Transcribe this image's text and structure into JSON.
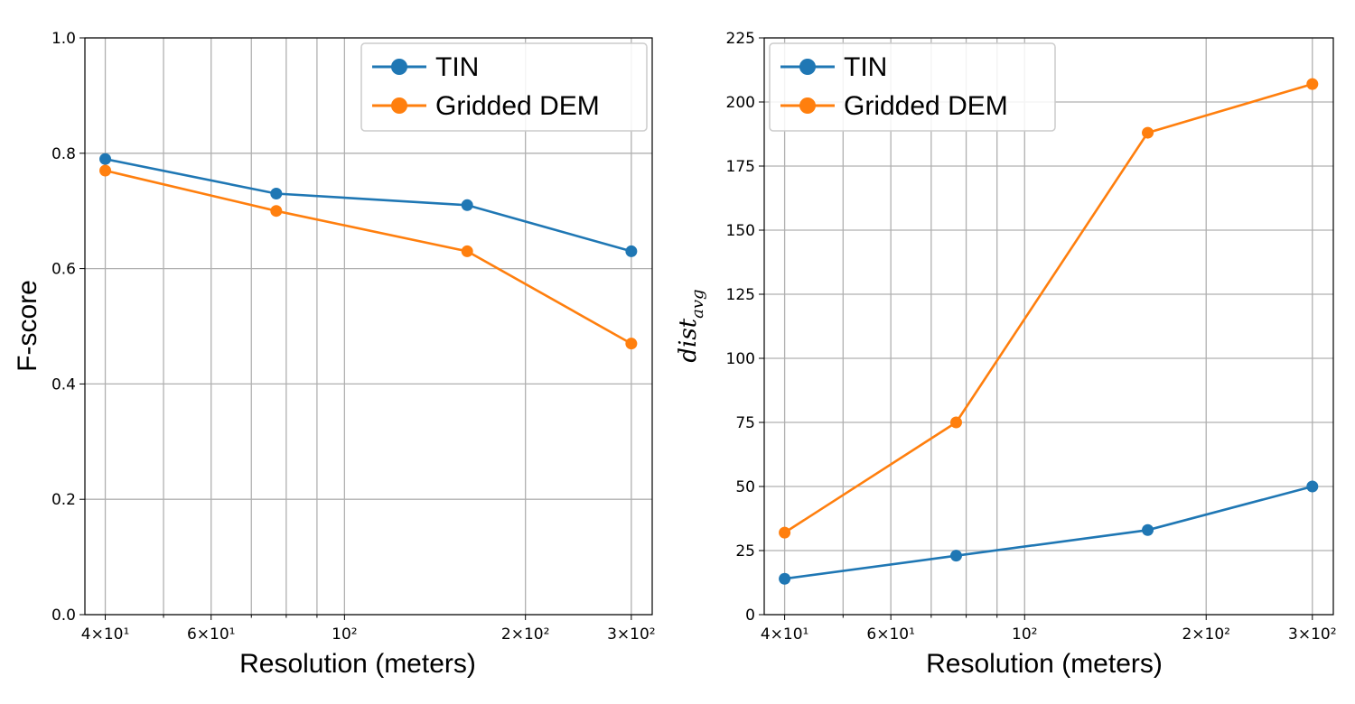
{
  "chart_data": [
    {
      "type": "line",
      "xscale": "log",
      "x": [
        40,
        77,
        160,
        300
      ],
      "xlim": [
        37,
        325
      ],
      "ylim": [
        0,
        1.0
      ],
      "xlabel": "Resolution (meters)",
      "ylabel": "F-score",
      "grid": true,
      "legend_position": "top-right",
      "x_tick_labels": [
        {
          "value": 40,
          "label": "4×10¹"
        },
        {
          "value": 60,
          "label": "6×10¹"
        },
        {
          "value": 100,
          "label": "10²"
        },
        {
          "value": 200,
          "label": "2×10²"
        },
        {
          "value": 300,
          "label": "3×10²"
        }
      ],
      "x_minor_gridlines": [
        40,
        50,
        60,
        70,
        80,
        90,
        100,
        200,
        300
      ],
      "y_ticks": [
        0.0,
        0.2,
        0.4,
        0.6,
        0.8,
        1.0
      ],
      "y_tick_labels": [
        "0.0",
        "0.2",
        "0.4",
        "0.6",
        "0.8",
        "1.0"
      ],
      "series": [
        {
          "name": "TIN",
          "color": "#1f77b4",
          "values": [
            0.79,
            0.73,
            0.71,
            0.63
          ]
        },
        {
          "name": "Gridded DEM",
          "color": "#ff7f0e",
          "values": [
            0.77,
            0.7,
            0.63,
            0.47
          ]
        }
      ]
    },
    {
      "type": "line",
      "xscale": "log",
      "x": [
        40,
        77,
        160,
        300
      ],
      "xlim": [
        37,
        325
      ],
      "ylim": [
        0,
        225
      ],
      "xlabel": "Resolution (meters)",
      "ylabel": "dist",
      "ylabel_sub": "avg",
      "grid": true,
      "legend_position": "top-left",
      "x_tick_labels": [
        {
          "value": 40,
          "label": "4×10¹"
        },
        {
          "value": 60,
          "label": "6×10¹"
        },
        {
          "value": 100,
          "label": "10²"
        },
        {
          "value": 200,
          "label": "2×10²"
        },
        {
          "value": 300,
          "label": "3×10²"
        }
      ],
      "x_minor_gridlines": [
        40,
        50,
        60,
        70,
        80,
        90,
        100,
        200,
        300
      ],
      "y_ticks": [
        0,
        25,
        50,
        75,
        100,
        125,
        150,
        175,
        200,
        225
      ],
      "y_tick_labels": [
        "0",
        "25",
        "50",
        "75",
        "100",
        "125",
        "150",
        "175",
        "200",
        "225"
      ],
      "series": [
        {
          "name": "TIN",
          "color": "#1f77b4",
          "values": [
            14,
            23,
            33,
            50
          ]
        },
        {
          "name": "Gridded DEM",
          "color": "#ff7f0e",
          "values": [
            32,
            75,
            188,
            207
          ]
        }
      ]
    }
  ]
}
